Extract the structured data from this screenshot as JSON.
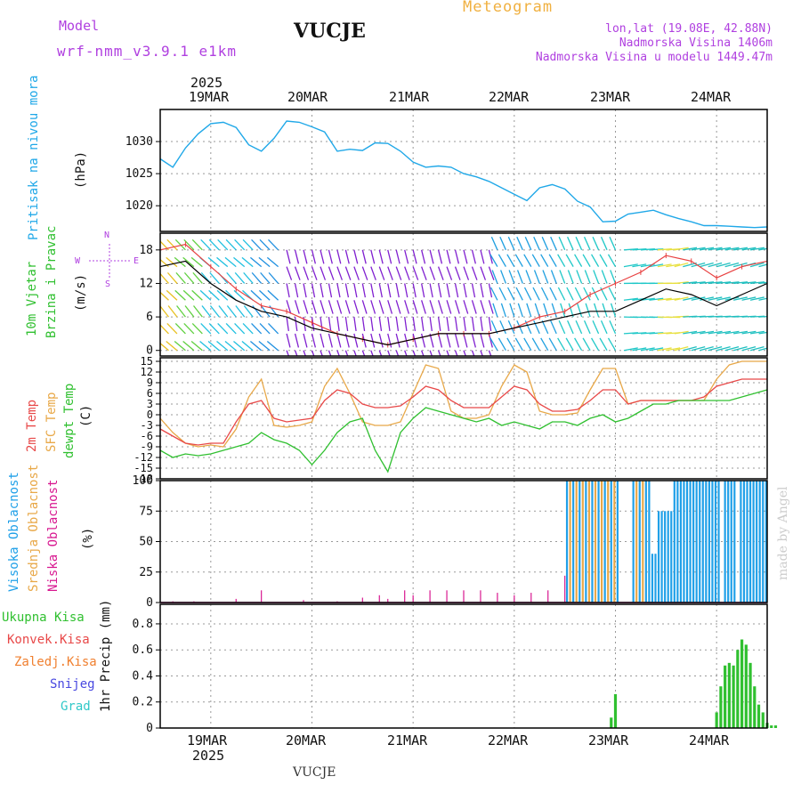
{
  "header": {
    "model_label": "Model",
    "model_name": "wrf-nmm_v3.9.1 e1km",
    "station": "VUCJE",
    "title": "Meteogram",
    "lonlat": "lon,lat (19.08E, 42.88N)",
    "elevation": "Nadmorska Visina 1406m",
    "model_elevation": "Nadmorska Visina u modelu 1449.47m",
    "footer": "VUCJE",
    "credit": "made by Angel"
  },
  "axes": {
    "year": "2025",
    "dates": [
      "19MAR",
      "20MAR",
      "21MAR",
      "22MAR",
      "23MAR",
      "24MAR"
    ]
  },
  "panels": {
    "pressure": {
      "ylabels": [
        "Pritisak na nivou mora"
      ],
      "unit": "(hPa)",
      "ticks": [
        "1020",
        "1025",
        "1030"
      ]
    },
    "wind": {
      "ylabels": [
        "10m Vjetar",
        "Brzina i Pravac"
      ],
      "unit": "(m/s)",
      "ticks": [
        "0",
        "6",
        "12",
        "18"
      ],
      "compass": {
        "n": "N",
        "s": "S",
        "w": "W",
        "e": "E"
      }
    },
    "temp": {
      "ylabels": [
        "2m Temp",
        "SFC Temp",
        "dewpt Temp"
      ],
      "unit": "(C)",
      "ticks": [
        "-18",
        "-15",
        "-12",
        "-9",
        "-6",
        "-3",
        "0",
        "3",
        "6",
        "9",
        "12",
        "15"
      ]
    },
    "cloud": {
      "ylabels": [
        "Visoka Oblacnost",
        "Srednja Oblacnost",
        "Niska Oblacnost"
      ],
      "unit": "(%)",
      "ticks": [
        "0",
        "25",
        "50",
        "75",
        "100"
      ]
    },
    "precip": {
      "legend": [
        "Ukupna Kisa",
        "Konvek.Kisa",
        "Zaledj.Kisa",
        "Snijeg",
        "Grad"
      ],
      "unit": "1hr Precip (mm)",
      "ticks": [
        "0",
        "0.2",
        "0.4",
        "0.6",
        "0.8"
      ]
    }
  },
  "colors": {
    "pressure": "#20a8e8",
    "wind_speed": "#000000",
    "wind_gust": "#e84040",
    "t2m": "#e84848",
    "tsfc": "#e8a848",
    "dewpt": "#30c030",
    "cloud_high": "#20a0e8",
    "cloud_mid": "#e8a848",
    "cloud_low": "#d81890",
    "rain": "#30c030",
    "conv": "#e84848",
    "frz": "#f08030",
    "snow": "#4848e0",
    "hail": "#30c8c8"
  },
  "chart_data": [
    {
      "type": "line",
      "ylabel": "(hPa)",
      "ylim": [
        1016,
        1035
      ],
      "series": [
        {
          "name": "Pritisak na nivou mora",
          "x": [
            0,
            3,
            6,
            9,
            12,
            15,
            18,
            21,
            24,
            27,
            30,
            33,
            36,
            39,
            42,
            45,
            48,
            51,
            54,
            57,
            60,
            63,
            66,
            69,
            72,
            75,
            78,
            81,
            84,
            87,
            90,
            93,
            96,
            99,
            102,
            105,
            108,
            111,
            114,
            117,
            120,
            123,
            126,
            129,
            132,
            135,
            138,
            141,
            144
          ],
          "values": [
            1027.3,
            1026.0,
            1029.0,
            1031.2,
            1032.8,
            1033.0,
            1032.2,
            1029.5,
            1028.5,
            1030.5,
            1033.2,
            1033.0,
            1032.3,
            1031.5,
            1028.5,
            1028.8,
            1028.6,
            1029.8,
            1029.7,
            1028.5,
            1026.8,
            1026.0,
            1026.2,
            1026.0,
            1025.0,
            1024.5,
            1023.8,
            1022.8,
            1021.8,
            1020.8,
            1022.8,
            1023.3,
            1022.6,
            1020.7,
            1019.8,
            1017.5,
            1017.6,
            1018.7,
            1019.0,
            1019.3,
            1018.6,
            1018.0,
            1017.5,
            1016.9,
            1016.9,
            1016.8,
            1016.7,
            1016.6,
            1016.7
          ]
        }
      ]
    },
    {
      "type": "line",
      "ylabel": "(m/s)",
      "ylim": [
        -1,
        21
      ],
      "series": [
        {
          "name": "speed",
          "x": [
            0,
            6,
            12,
            18,
            24,
            30,
            36,
            42,
            48,
            54,
            60,
            66,
            72,
            78,
            84,
            90,
            96,
            102,
            108,
            114,
            120,
            126,
            132,
            138,
            144
          ],
          "values": [
            15,
            16,
            12,
            9,
            7,
            6,
            4,
            3,
            2,
            1,
            2,
            3,
            3,
            3,
            4,
            5,
            6,
            7,
            7,
            9,
            11,
            10,
            8,
            10,
            12
          ]
        },
        {
          "name": "gust",
          "x": [
            0,
            6,
            12,
            18,
            24,
            30,
            36,
            42,
            48,
            54,
            60,
            66,
            72,
            78,
            84,
            90,
            96,
            102,
            108,
            114,
            120,
            126,
            132,
            138,
            144
          ],
          "values": [
            18,
            19,
            15,
            11,
            8,
            7,
            5,
            3,
            2,
            1,
            2,
            3,
            3,
            3,
            4,
            6,
            7,
            10,
            12,
            14,
            17,
            16,
            13,
            15,
            16
          ]
        }
      ]
    },
    {
      "type": "line",
      "ylabel": "(C)",
      "ylim": [
        -18,
        16
      ],
      "series": [
        {
          "name": "2m Temp",
          "x": [
            0,
            3,
            6,
            9,
            12,
            15,
            18,
            21,
            24,
            27,
            30,
            33,
            36,
            39,
            42,
            45,
            48,
            51,
            54,
            57,
            60,
            63,
            66,
            69,
            72,
            75,
            78,
            81,
            84,
            87,
            90,
            93,
            96,
            99,
            102,
            105,
            108,
            111,
            114,
            117,
            120,
            123,
            126,
            129,
            132,
            135,
            138,
            141,
            144
          ],
          "values": [
            -4,
            -6,
            -8,
            -8.5,
            -8,
            -8,
            -2,
            3,
            4,
            -1,
            -2,
            -1.5,
            -1,
            4,
            7,
            6,
            3,
            2,
            2,
            2.5,
            5,
            8,
            7,
            4,
            2,
            2,
            2,
            5,
            8,
            7,
            3,
            1,
            1,
            1.5,
            4,
            7,
            7,
            3,
            4,
            4,
            4,
            4,
            4,
            5,
            8,
            9,
            10,
            10,
            10
          ]
        },
        {
          "name": "SFC Temp",
          "x": [
            0,
            3,
            6,
            9,
            12,
            15,
            18,
            21,
            24,
            27,
            30,
            33,
            36,
            39,
            42,
            45,
            48,
            51,
            54,
            57,
            60,
            63,
            66,
            69,
            72,
            75,
            78,
            81,
            84,
            87,
            90,
            93,
            96,
            99,
            102,
            105,
            108,
            111,
            114,
            117,
            120,
            123,
            126,
            129,
            132,
            135,
            138,
            141,
            144
          ],
          "values": [
            -1,
            -5,
            -8,
            -9,
            -8.5,
            -9,
            -4,
            5,
            10,
            -3,
            -3.5,
            -3,
            -2,
            8,
            13,
            6,
            -2,
            -3,
            -3,
            -2,
            6,
            14,
            13,
            1,
            -1,
            -1,
            0,
            8,
            14,
            12,
            1,
            0,
            0,
            0.5,
            7,
            13,
            13,
            3,
            4,
            4,
            4,
            4,
            4,
            4,
            10,
            14,
            15,
            15,
            15
          ]
        },
        {
          "name": "dewpt Temp",
          "x": [
            0,
            3,
            6,
            9,
            12,
            15,
            18,
            21,
            24,
            27,
            30,
            33,
            36,
            39,
            42,
            45,
            48,
            51,
            54,
            57,
            60,
            63,
            66,
            69,
            72,
            75,
            78,
            81,
            84,
            87,
            90,
            93,
            96,
            99,
            102,
            105,
            108,
            111,
            114,
            117,
            120,
            123,
            126,
            129,
            132,
            135,
            138,
            141,
            144
          ],
          "values": [
            -10,
            -12,
            -11,
            -11.5,
            -11,
            -10,
            -9,
            -8,
            -5,
            -7,
            -8,
            -10,
            -14,
            -10,
            -5,
            -2,
            -1,
            -10,
            -16,
            -5,
            -1,
            2,
            1,
            0,
            -1,
            -2,
            -1,
            -3,
            -2,
            -3,
            -4,
            -2,
            -2,
            -3,
            -1,
            0,
            -2,
            -1,
            1,
            3,
            3,
            4,
            4,
            4,
            4,
            4,
            5,
            6,
            7
          ]
        }
      ]
    },
    {
      "type": "bar",
      "ylabel": "(%)",
      "ylim": [
        0,
        100
      ],
      "series": [
        {
          "name": "Visoka Oblacnost",
          "note": "near 100% with gaps from 22MAR onward"
        },
        {
          "name": "Srednja Oblacnost",
          "note": "intermittent 100% from 22MAR"
        },
        {
          "name": "Niska Oblacnost",
          "x": [
            3,
            8,
            18,
            24,
            34,
            42,
            48,
            52,
            54,
            58,
            60,
            64,
            68,
            72,
            76,
            80,
            84,
            88,
            92,
            96
          ],
          "values": [
            1,
            1,
            3,
            10,
            2,
            1,
            4,
            6,
            3,
            10,
            6,
            10,
            10,
            10,
            10,
            8,
            6,
            8,
            10,
            22
          ]
        }
      ]
    },
    {
      "type": "bar",
      "ylabel": "1hr Precip (mm)",
      "ylim": [
        0,
        0.95
      ],
      "series": [
        {
          "name": "Ukupna Kisa",
          "x": [
            107,
            108,
            132,
            133,
            134,
            135,
            136,
            137,
            138,
            139,
            140,
            141,
            142,
            143,
            144,
            145,
            146
          ],
          "values": [
            0.08,
            0.26,
            0.12,
            0.32,
            0.48,
            0.5,
            0.48,
            0.6,
            0.68,
            0.64,
            0.5,
            0.32,
            0.18,
            0.12,
            0.04,
            0.02,
            0.02
          ]
        }
      ]
    }
  ]
}
